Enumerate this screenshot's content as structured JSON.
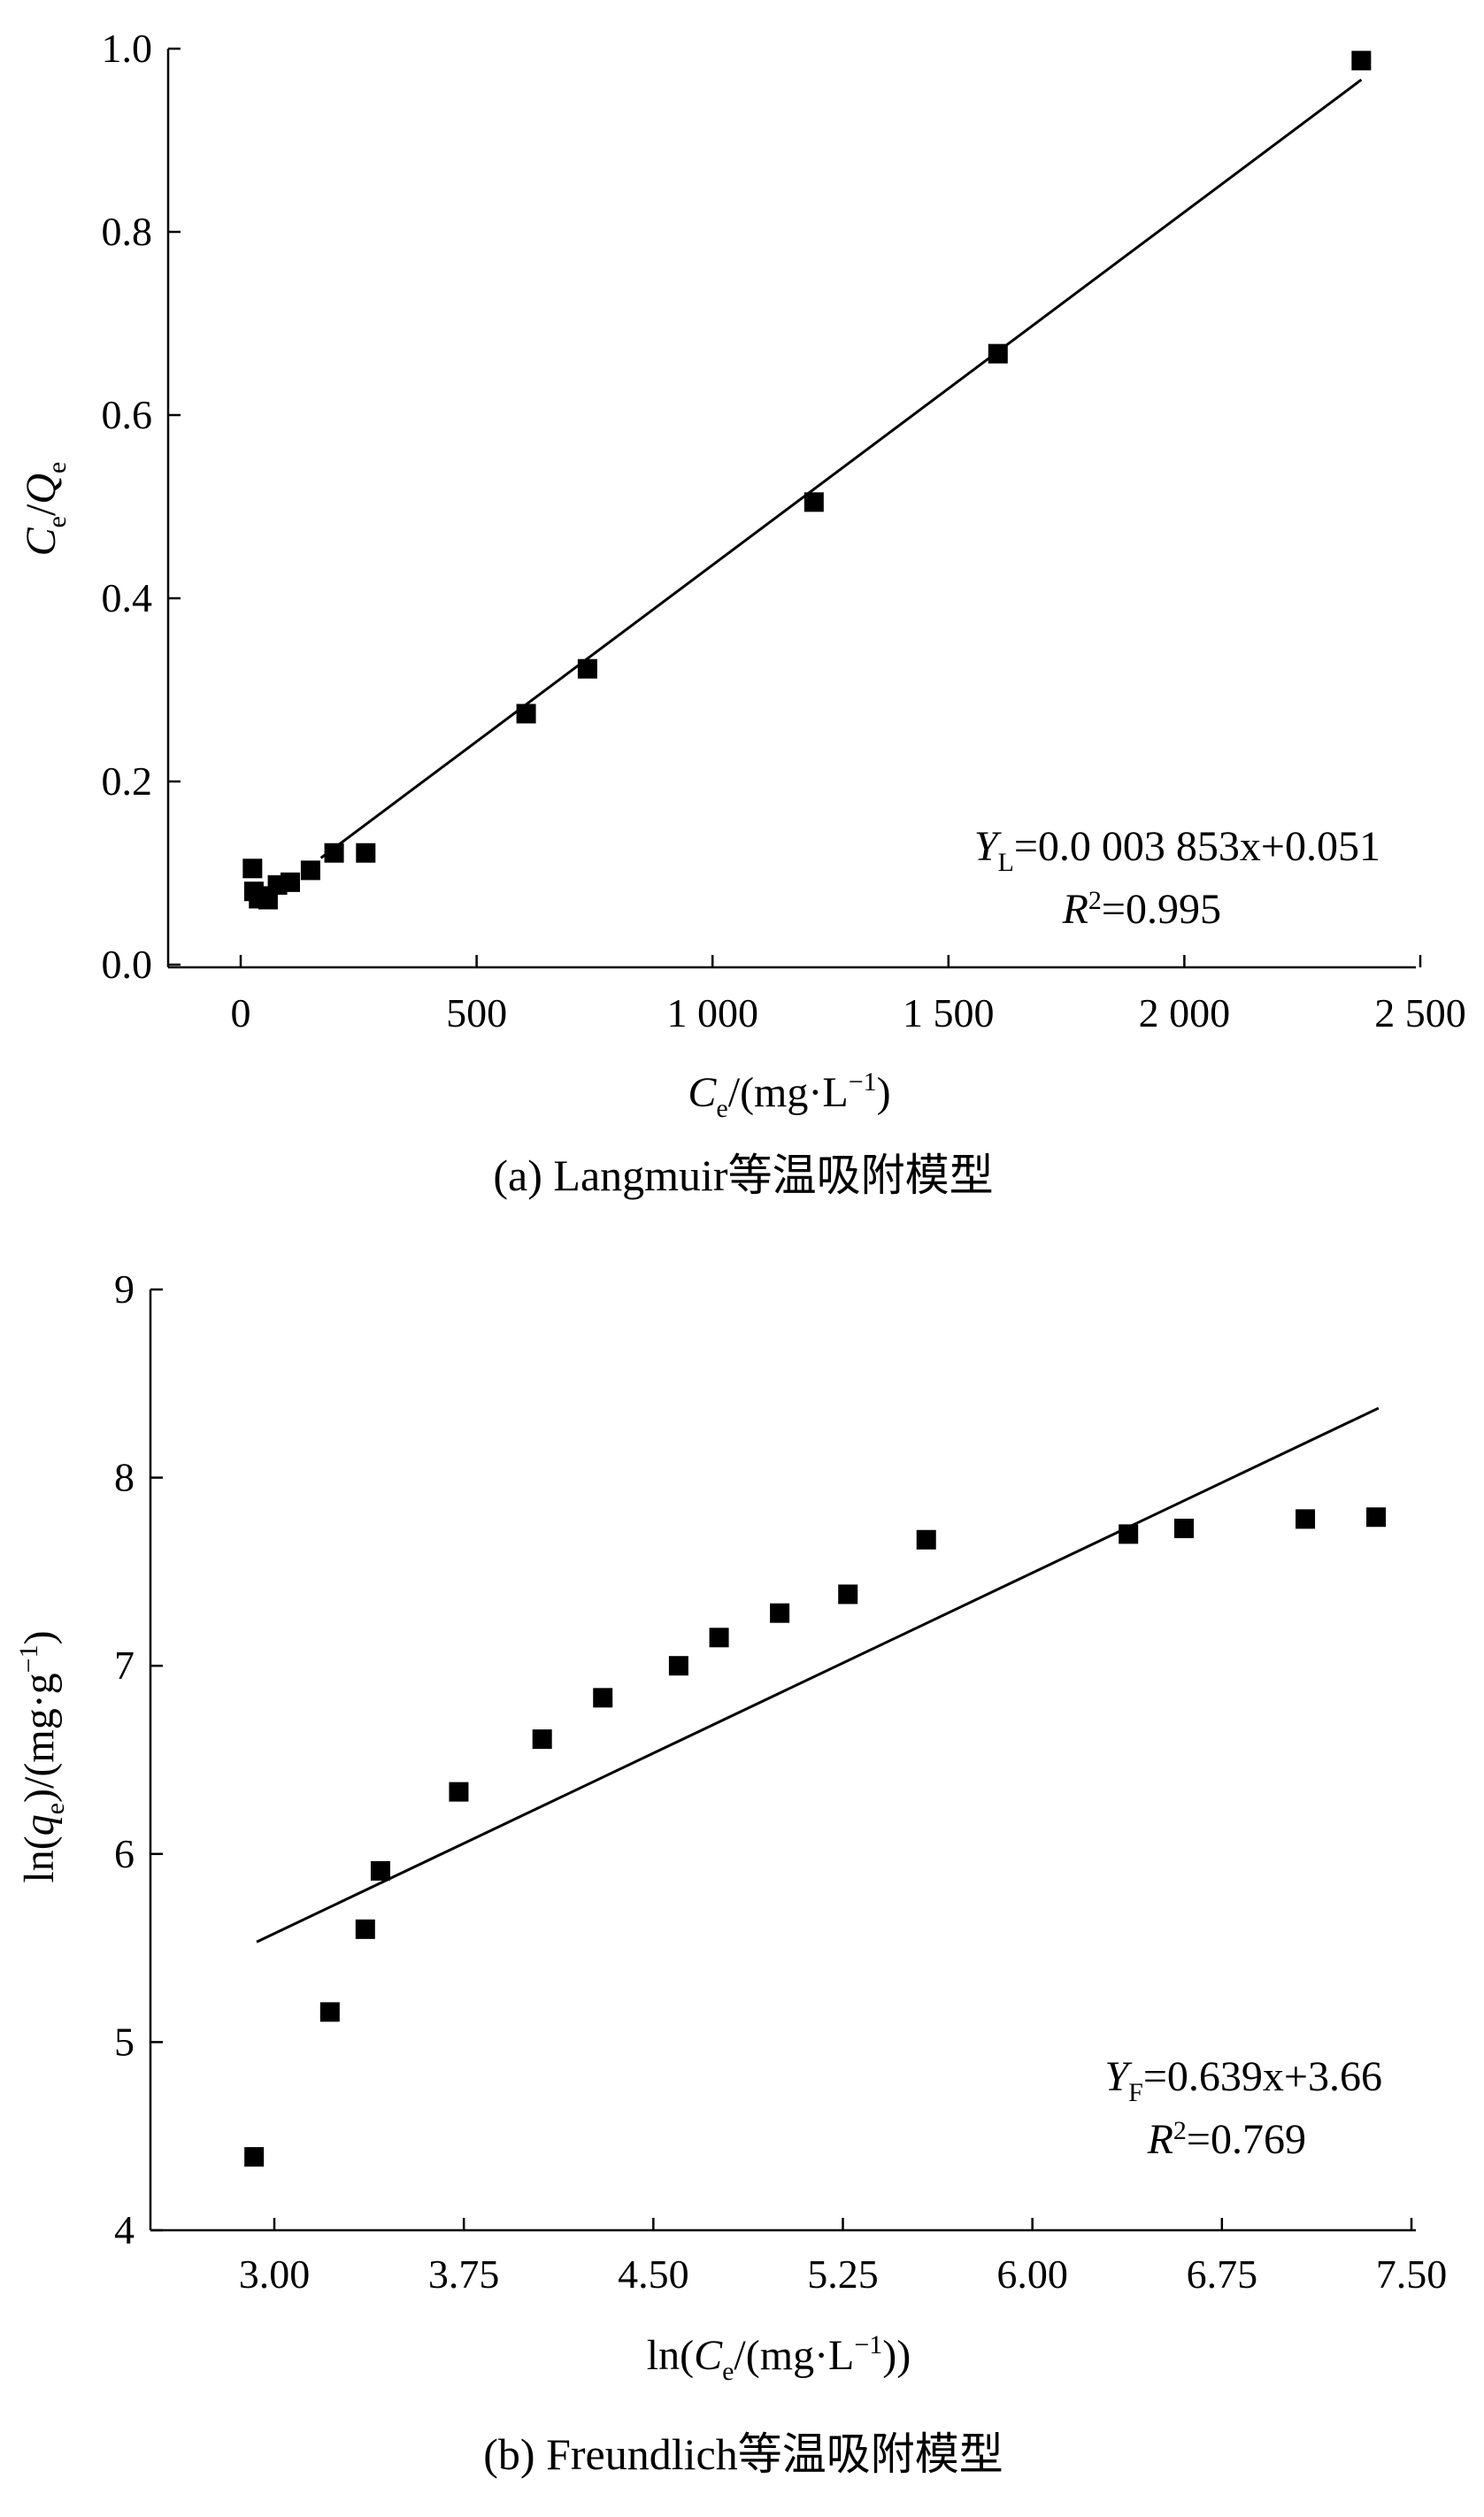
{
  "colors": {
    "ink": "#000000",
    "background": "#ffffff"
  },
  "chart_data": [
    {
      "type": "scatter",
      "caption": "(a) Langmuir等温吸附模型",
      "xlabel": "Ce/(mg·L−1)",
      "xlabel_parts": {
        "var": "C",
        "sub": "e",
        "rest": "/(mg·L",
        "sup": "−1",
        "close": ")"
      },
      "ylabel": "Ce/Qe",
      "ylabel_parts": {
        "var1": "C",
        "sub1": "e",
        "slash": "/",
        "var2": "Q",
        "sub2": "e"
      },
      "xlim": [
        -80,
        2500
      ],
      "ylim": [
        -0.01,
        1.0
      ],
      "xticks": [
        0,
        500,
        1000,
        1500,
        2000,
        2500
      ],
      "xtick_labels": [
        "0",
        "500",
        "1 000",
        "1 500",
        "2 000",
        "2 500"
      ],
      "yticks": [
        0.0,
        0.2,
        0.4,
        0.6,
        0.8,
        1.0
      ],
      "ytick_labels": [
        "0.0",
        "0.2",
        "0.4",
        "0.6",
        "0.8",
        "1.0"
      ],
      "points": {
        "x": [
          25,
          28,
          38,
          48,
          58,
          78,
          105,
          148,
          198,
          265,
          605,
          735,
          1215,
          1605,
          2375
        ],
        "y": [
          0.105,
          0.08,
          0.072,
          0.075,
          0.071,
          0.087,
          0.09,
          0.103,
          0.122,
          0.122,
          0.274,
          0.323,
          0.505,
          0.667,
          0.987
        ]
      },
      "fit_line": {
        "slope": 0.0003853,
        "intercept": 0.051,
        "x_range": [
          170,
          2375
        ]
      },
      "equation": {
        "var": "Y",
        "sub": "L",
        "text": "=0.0 003 853x+0.051"
      },
      "r2": {
        "var": "R",
        "sup": "2",
        "text": "=0.995"
      },
      "grid": false
    },
    {
      "type": "scatter",
      "caption": "(b) Freundlich等温吸附模型",
      "xlabel": "ln(Ce/(mg·L−1))",
      "xlabel_parts": {
        "pre": "ln(",
        "var": "C",
        "sub": "e",
        "rest": "/(mg·L",
        "sup": "−1",
        "close": "))"
      },
      "ylabel": "ln(qe)/(mg·g−1)",
      "ylabel_parts": {
        "pre": "ln(",
        "var": "q",
        "sub": "e",
        "mid": ")/(mg·g",
        "sup": "−1",
        "close": ")"
      },
      "xlim": [
        2.5,
        7.5
      ],
      "ylim": [
        4,
        9
      ],
      "xticks": [
        3.0,
        3.75,
        4.5,
        5.25,
        6.0,
        6.75,
        7.5
      ],
      "xtick_labels": [
        "3.00",
        "3.75",
        "4.50",
        "5.25",
        "6.00",
        "6.75",
        "7.50"
      ],
      "yticks": [
        4,
        5,
        6,
        7,
        8,
        9
      ],
      "ytick_labels": [
        "4",
        "5",
        "6",
        "7",
        "8",
        "9"
      ],
      "points": {
        "x": [
          2.92,
          3.22,
          3.36,
          3.42,
          3.73,
          4.06,
          4.3,
          4.6,
          4.76,
          5.0,
          5.27,
          5.58,
          6.38,
          6.6,
          7.08,
          7.36
        ],
        "y": [
          4.39,
          5.16,
          5.6,
          5.91,
          6.33,
          6.61,
          6.83,
          7.0,
          7.15,
          7.28,
          7.38,
          7.67,
          7.7,
          7.73,
          7.78,
          7.79
        ]
      },
      "fit_line": {
        "slope": 0.639,
        "intercept": 3.66,
        "x_range": [
          2.93,
          7.37
        ]
      },
      "equation": {
        "var": "Y",
        "sub": "F",
        "text": "=0.639x+3.66"
      },
      "r2": {
        "var": "R",
        "sup": "2",
        "text": "=0.769"
      },
      "grid": false
    }
  ]
}
